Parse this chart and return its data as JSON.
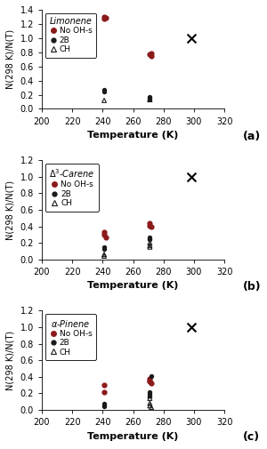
{
  "panels": [
    {
      "label": "(a)",
      "title": "Limonene",
      "ylim": [
        0.0,
        1.4
      ],
      "yticks": [
        0.0,
        0.2,
        0.4,
        0.6,
        0.8,
        1.0,
        1.2,
        1.4
      ],
      "no_ohs": {
        "x": [
          241,
          241,
          242,
          271,
          272,
          272
        ],
        "y": [
          1.28,
          1.3,
          1.29,
          0.77,
          0.75,
          0.78
        ]
      },
      "twob": {
        "x": [
          241,
          241,
          271,
          271,
          271
        ],
        "y": [
          0.25,
          0.27,
          0.16,
          0.15,
          0.17
        ]
      },
      "ch": {
        "x": [
          241,
          271,
          271
        ],
        "y": [
          0.12,
          0.13,
          0.14
        ]
      },
      "cross": {
        "x": [
          298
        ],
        "y": [
          1.0
        ]
      }
    },
    {
      "label": "(b)",
      "title": "Δ3-Carene",
      "ylim": [
        0.0,
        1.2
      ],
      "yticks": [
        0.0,
        0.2,
        0.4,
        0.6,
        0.8,
        1.0,
        1.2
      ],
      "no_ohs": {
        "x": [
          241,
          241,
          242,
          271,
          271,
          272
        ],
        "y": [
          0.33,
          0.3,
          0.27,
          0.44,
          0.41,
          0.39
        ]
      },
      "twob": {
        "x": [
          241,
          241,
          271,
          271,
          271
        ],
        "y": [
          0.15,
          0.13,
          0.27,
          0.25,
          0.24
        ]
      },
      "ch": {
        "x": [
          241,
          241,
          271,
          271,
          271
        ],
        "y": [
          0.06,
          0.04,
          0.2,
          0.17,
          0.15
        ]
      },
      "cross": {
        "x": [
          298
        ],
        "y": [
          1.0
        ]
      }
    },
    {
      "label": "(c)",
      "title": "α-Pinene",
      "ylim": [
        0.0,
        1.2
      ],
      "yticks": [
        0.0,
        0.2,
        0.4,
        0.6,
        0.8,
        1.0,
        1.2
      ],
      "no_ohs": {
        "x": [
          241,
          241,
          271,
          271,
          271,
          272
        ],
        "y": [
          0.3,
          0.22,
          0.38,
          0.36,
          0.34,
          0.32
        ]
      },
      "twob": {
        "x": [
          241,
          241,
          241,
          271,
          271,
          271,
          272
        ],
        "y": [
          0.07,
          0.05,
          0.04,
          0.22,
          0.19,
          0.17,
          0.41
        ]
      },
      "ch": {
        "x": [
          271,
          271,
          271,
          271,
          272
        ],
        "y": [
          0.17,
          0.14,
          0.08,
          0.05,
          0.03
        ]
      },
      "cross": {
        "x": [
          298
        ],
        "y": [
          1.0
        ]
      }
    }
  ],
  "xlim": [
    200,
    320
  ],
  "xticks": [
    200,
    220,
    240,
    260,
    280,
    300,
    320
  ],
  "xlabel": "Temperature (K)",
  "ylabel": "N(298 K)/N(T)",
  "color_no_ohs": "#8B1A1A",
  "color_twob": "#1a1a1a",
  "color_ch": "#1a1a1a",
  "bg_color": "#ffffff"
}
